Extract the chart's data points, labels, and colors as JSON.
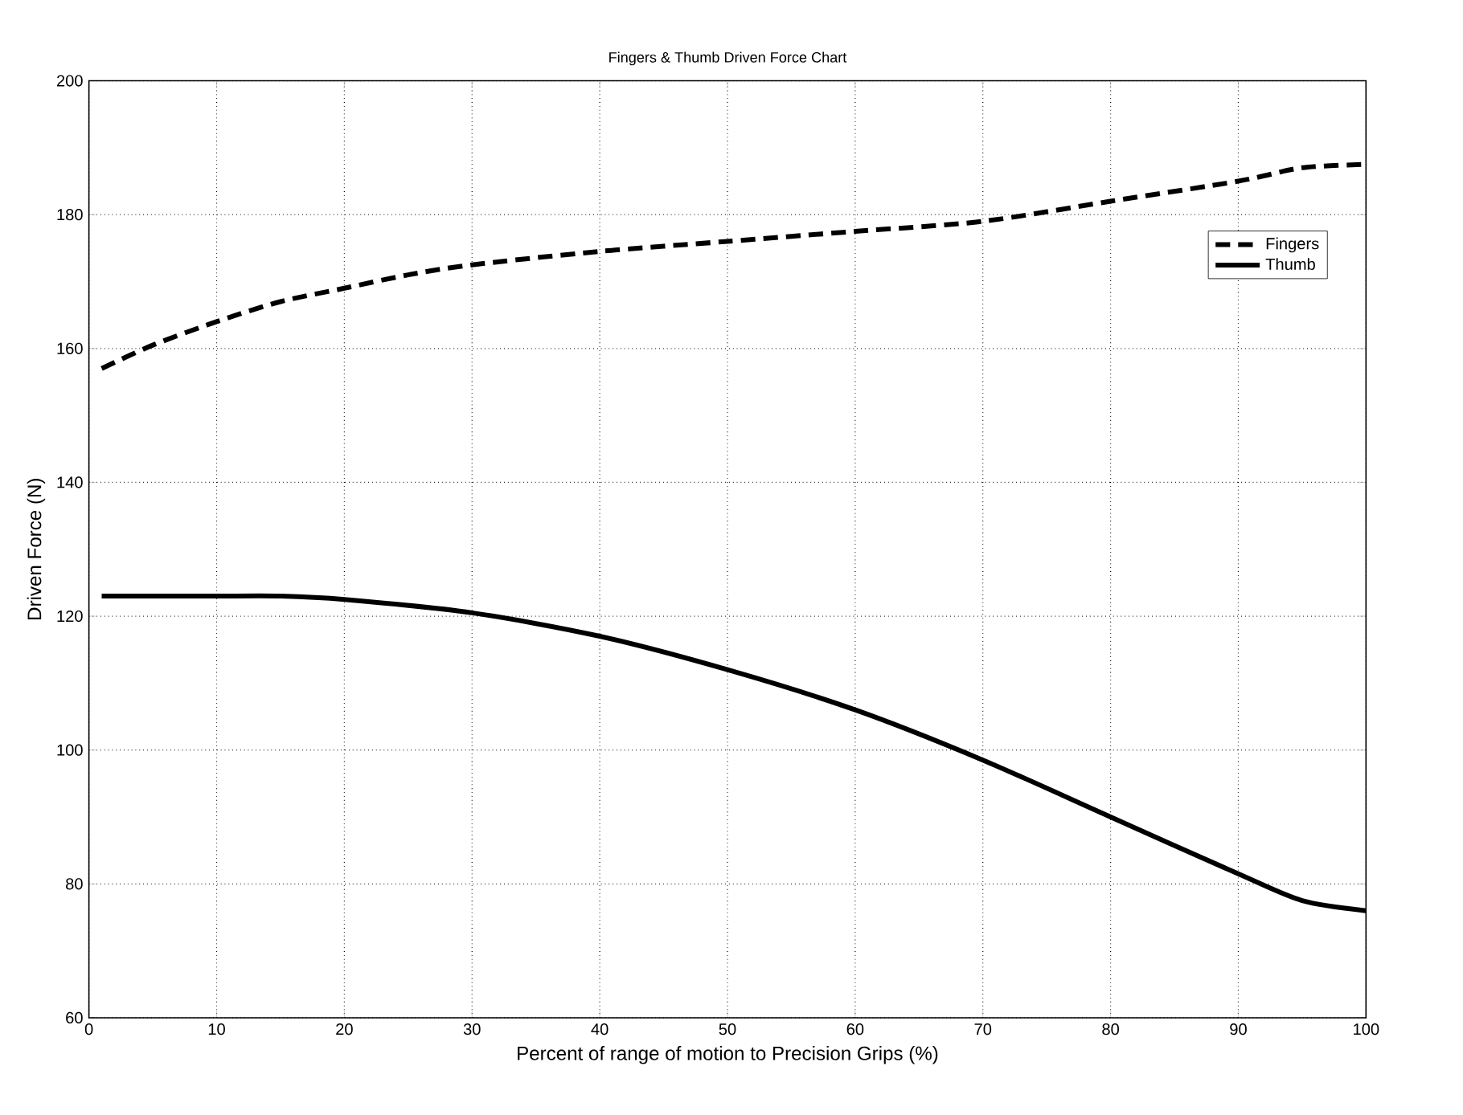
{
  "chart_data": {
    "type": "line",
    "title": "Fingers & Thumb Driven Force Chart",
    "xlabel": "Percent of range of motion to Precision Grips (%)",
    "ylabel": "Driven Force (N)",
    "xlim": [
      0,
      100
    ],
    "ylim": [
      60,
      200
    ],
    "xticks": [
      0,
      10,
      20,
      30,
      40,
      50,
      60,
      70,
      80,
      90,
      100
    ],
    "yticks": [
      60,
      80,
      100,
      120,
      140,
      160,
      180,
      200
    ],
    "grid": true,
    "legend": "top right",
    "marker": "none",
    "series": [
      {
        "name": "Fingers",
        "color": "#000000",
        "line_style": "dashed",
        "x": [
          1,
          5,
          10,
          15,
          20,
          25,
          30,
          40,
          50,
          60,
          70,
          80,
          90,
          95,
          100
        ],
        "values": [
          157,
          160.5,
          164,
          167,
          169,
          171,
          172.5,
          174.5,
          176,
          177.5,
          179,
          182,
          185,
          187,
          187.5
        ]
      },
      {
        "name": "Thumb",
        "color": "#000000",
        "line_style": "solid",
        "x": [
          1,
          5,
          10,
          15,
          20,
          30,
          40,
          50,
          60,
          70,
          80,
          90,
          95,
          100
        ],
        "values": [
          123,
          123,
          123,
          123,
          122.5,
          120.5,
          117,
          112,
          106,
          98.5,
          90,
          81.5,
          77.5,
          76
        ]
      }
    ]
  }
}
